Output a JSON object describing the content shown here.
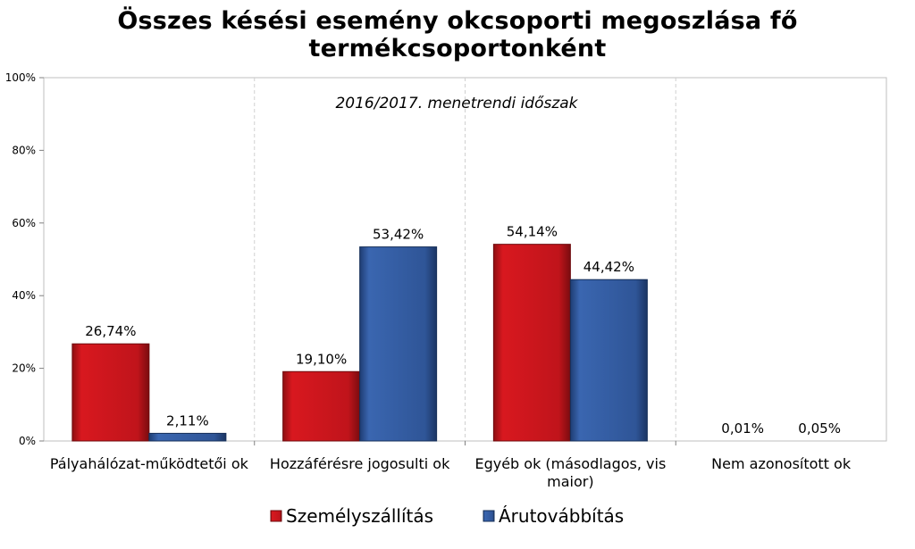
{
  "chart_data": {
    "type": "bar",
    "title": "Összes késési esemény okcsoporti megoszlása fő termékcsoportonként",
    "subtitle": "2016/2017. menetrendi időszak",
    "categories": [
      [
        "Pályahálózat-működtetői ok"
      ],
      [
        "Hozzáférésre jogosulti ok"
      ],
      [
        "Egyéb ok (másodlagos, vis",
        "maior)"
      ],
      [
        "Nem azonosított ok"
      ]
    ],
    "series": [
      {
        "name": "Személyszállítás",
        "color": "#c0141b",
        "values": [
          26.74,
          19.1,
          54.14,
          0.01
        ],
        "labels": [
          "26,74%",
          "19,10%",
          "54,14%",
          "0,01%"
        ]
      },
      {
        "name": "Árutovábbítás",
        "color": "#2f5597",
        "values": [
          2.11,
          53.42,
          44.42,
          0.05
        ],
        "labels": [
          "2,11%",
          "53,42%",
          "44,42%",
          "0,05%"
        ]
      }
    ],
    "ylim": [
      0,
      100
    ],
    "yticks": [
      "0%",
      "20%",
      "40%",
      "60%",
      "80%",
      "100%"
    ],
    "grid": "vertical dashed category separators",
    "legend": "bottom"
  }
}
